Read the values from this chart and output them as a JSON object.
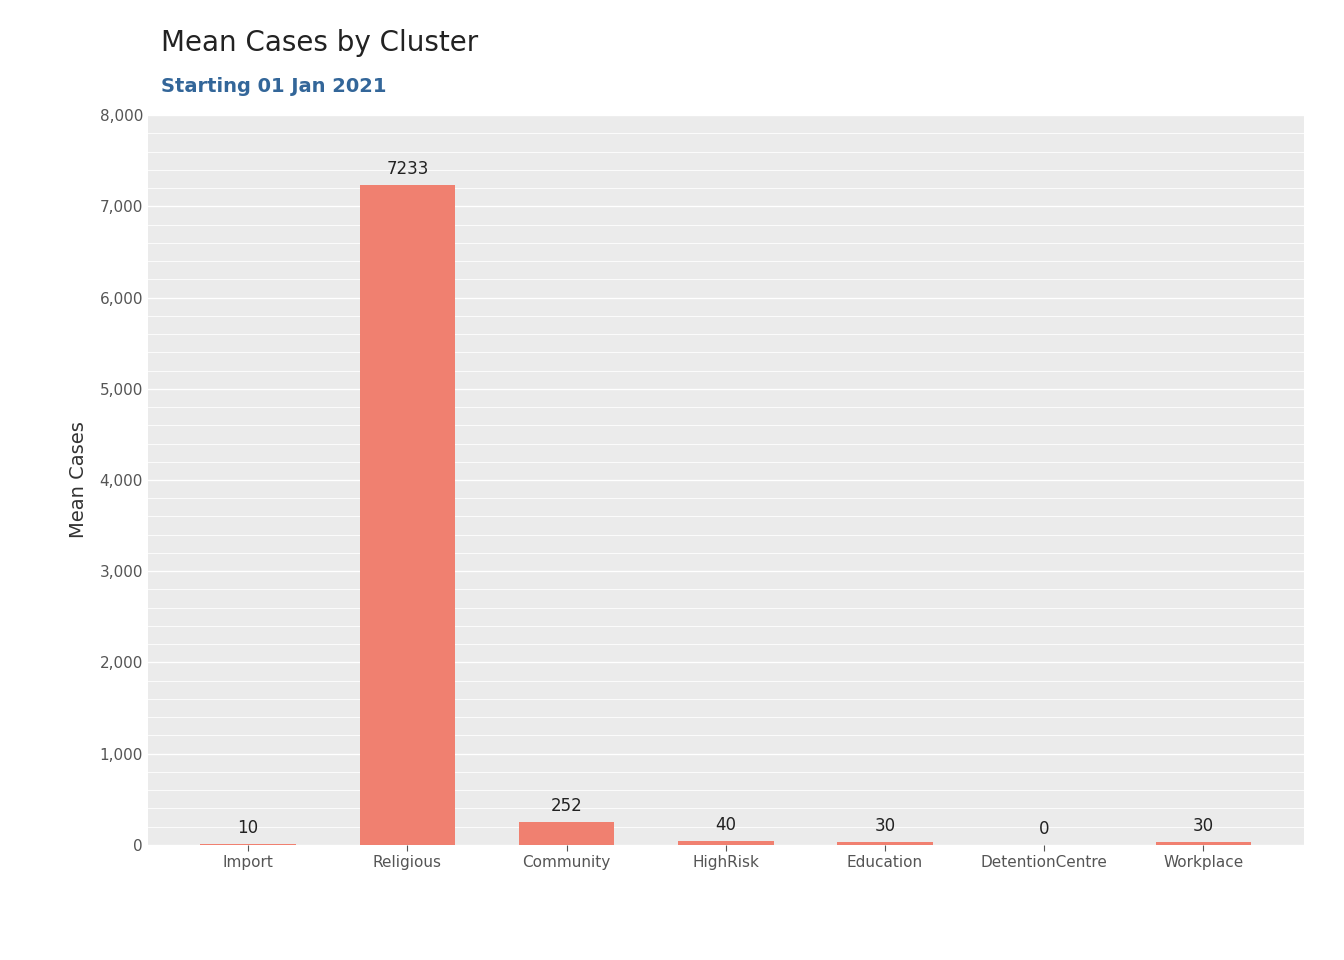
{
  "title": "Mean Cases by Cluster",
  "subtitle": "Starting 01 Jan 2021",
  "ylabel": "Mean Cases",
  "categories": [
    "Import",
    "Religious",
    "Community",
    "HighRisk",
    "Education",
    "DetentionCentre",
    "Workplace"
  ],
  "values": [
    10,
    7233,
    252,
    40,
    30,
    0,
    30
  ],
  "bar_color": "#F08070",
  "background_color": "#EBEBEB",
  "grid_color": "#FFFFFF",
  "title_fontsize": 20,
  "subtitle_fontsize": 14,
  "label_fontsize": 12,
  "axis_label_fontsize": 14,
  "tick_fontsize": 11,
  "title_color": "#222222",
  "subtitle_color": "#336699",
  "ylabel_color": "#333333"
}
